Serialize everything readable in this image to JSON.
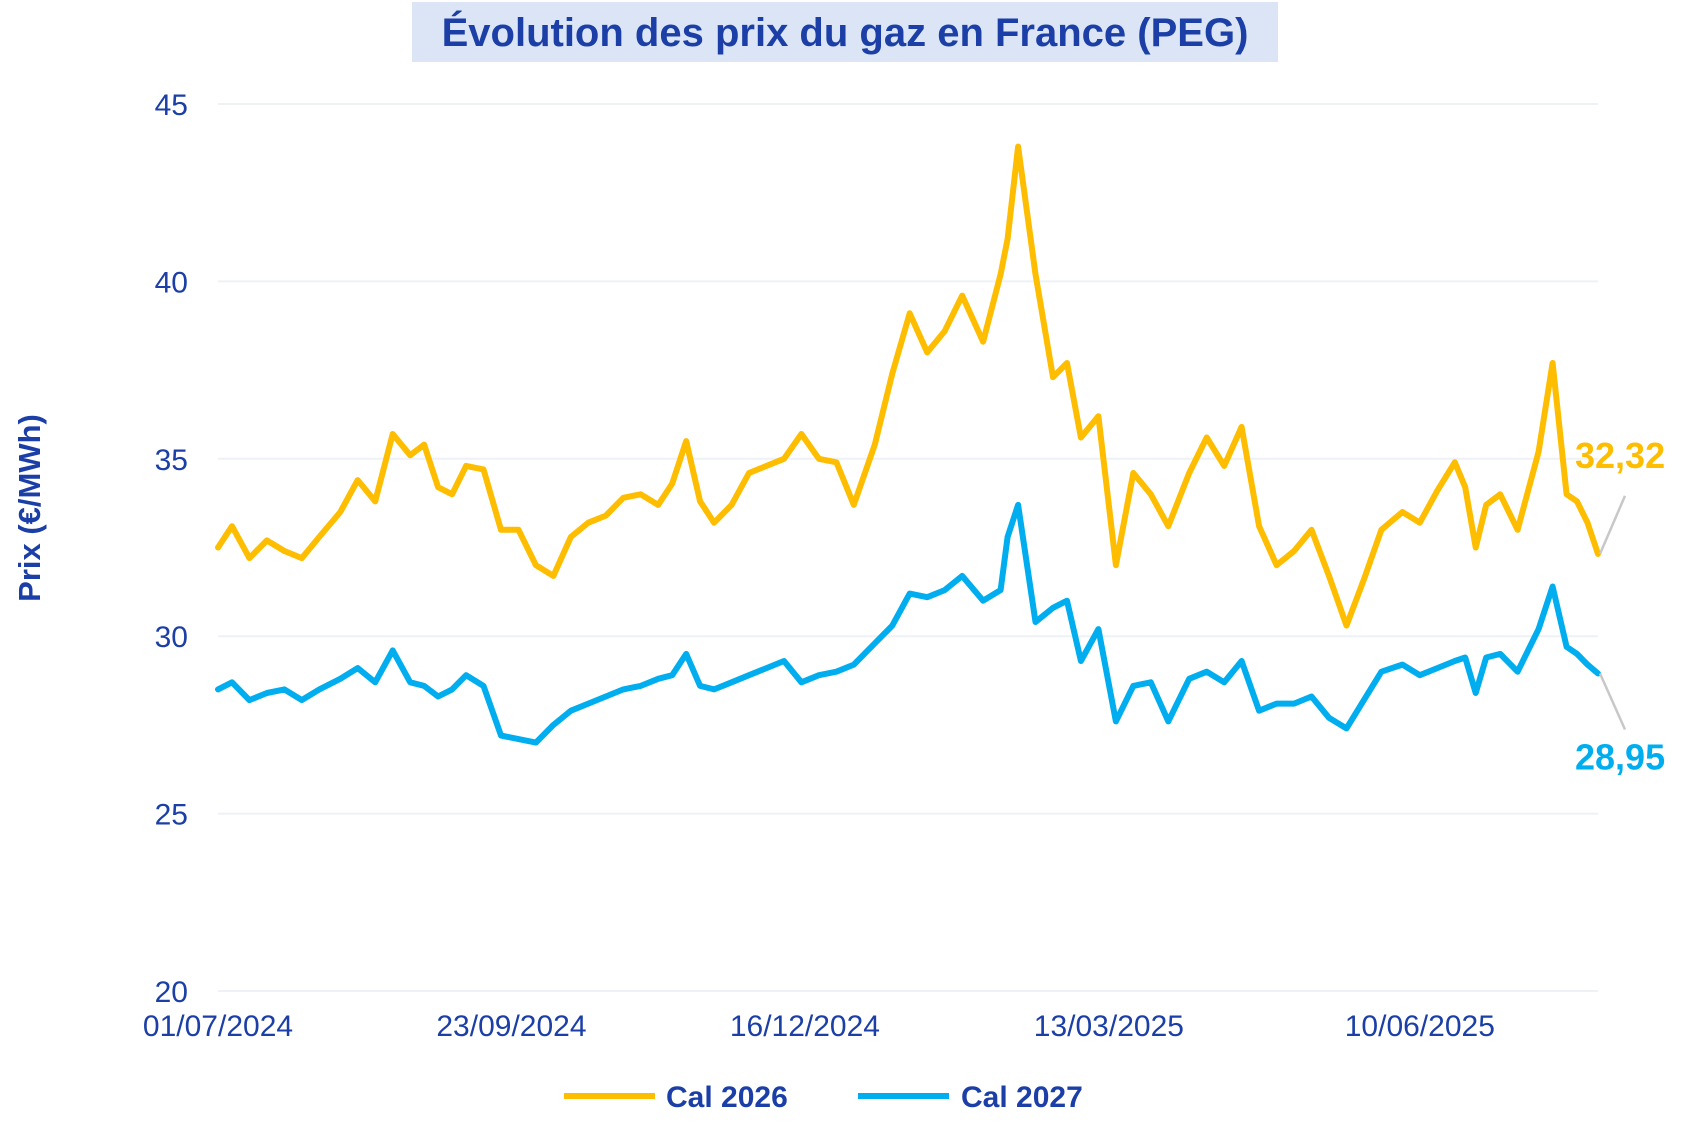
{
  "chart_data": {
    "type": "line",
    "title": "Évolution des prix du gaz en France (PEG)",
    "ylabel": "Prix (€/MWh)",
    "xlabel": "",
    "ylim": [
      20,
      45
    ],
    "yticks": [
      20,
      25,
      30,
      35,
      40,
      45
    ],
    "x_start": "01/07/2024",
    "x_end": "31/07/2025",
    "xtick_labels": [
      "01/07/2024",
      "23/09/2024",
      "16/12/2024",
      "13/03/2025",
      "10/06/2025"
    ],
    "grid": "horizontal",
    "legend_position": "bottom",
    "series": [
      {
        "name": "Cal 2026",
        "color": "#ffbd00",
        "last_label": "32,32",
        "x": [
          "01/07/2024",
          "05/07/2024",
          "10/07/2024",
          "15/07/2024",
          "20/07/2024",
          "25/07/2024",
          "30/07/2024",
          "05/08/2024",
          "10/08/2024",
          "15/08/2024",
          "20/08/2024",
          "25/08/2024",
          "29/08/2024",
          "02/09/2024",
          "06/09/2024",
          "10/09/2024",
          "15/09/2024",
          "20/09/2024",
          "25/09/2024",
          "30/09/2024",
          "05/10/2024",
          "10/10/2024",
          "15/10/2024",
          "20/10/2024",
          "25/10/2024",
          "30/10/2024",
          "04/11/2024",
          "08/11/2024",
          "12/11/2024",
          "16/11/2024",
          "20/11/2024",
          "25/11/2024",
          "30/11/2024",
          "05/12/2024",
          "10/12/2024",
          "15/12/2024",
          "20/12/2024",
          "25/12/2024",
          "30/12/2024",
          "05/01/2025",
          "10/01/2025",
          "15/01/2025",
          "20/01/2025",
          "25/01/2025",
          "30/01/2025",
          "05/02/2025",
          "10/02/2025",
          "12/02/2025",
          "15/02/2025",
          "20/02/2025",
          "25/02/2025",
          "01/03/2025",
          "05/03/2025",
          "10/03/2025",
          "15/03/2025",
          "20/03/2025",
          "25/03/2025",
          "30/03/2025",
          "05/04/2025",
          "10/04/2025",
          "15/04/2025",
          "20/04/2025",
          "25/04/2025",
          "30/04/2025",
          "05/05/2025",
          "10/05/2025",
          "15/05/2025",
          "20/05/2025",
          "25/05/2025",
          "30/05/2025",
          "05/06/2025",
          "10/06/2025",
          "15/06/2025",
          "20/06/2025",
          "23/06/2025",
          "26/06/2025",
          "29/06/2025",
          "03/07/2025",
          "08/07/2025",
          "14/07/2025",
          "18/07/2025",
          "22/07/2025",
          "25/07/2025",
          "28/07/2025",
          "31/07/2025"
        ],
        "values": [
          32.5,
          33.1,
          32.2,
          32.7,
          32.4,
          32.2,
          32.8,
          33.5,
          34.4,
          33.8,
          35.7,
          35.1,
          35.4,
          34.2,
          34.0,
          34.8,
          34.7,
          33.0,
          33.0,
          32.0,
          31.7,
          32.8,
          33.2,
          33.4,
          33.9,
          34.0,
          33.7,
          34.3,
          35.5,
          33.8,
          33.2,
          33.7,
          34.6,
          34.8,
          35.0,
          35.7,
          35.0,
          34.9,
          33.7,
          35.4,
          37.4,
          39.1,
          38.0,
          38.6,
          39.6,
          38.3,
          40.2,
          41.2,
          43.8,
          40.2,
          37.3,
          37.7,
          35.6,
          36.2,
          32.0,
          34.6,
          34.0,
          33.1,
          34.6,
          35.6,
          34.8,
          35.9,
          33.1,
          32.0,
          32.4,
          33.0,
          31.7,
          30.3,
          31.6,
          33.0,
          33.5,
          33.2,
          34.1,
          34.9,
          34.2,
          32.5,
          33.7,
          34.0,
          33.0,
          35.2,
          37.7,
          34.0,
          33.8,
          33.2,
          32.32
        ]
      },
      {
        "name": "Cal 2027",
        "color": "#00aeef",
        "last_label": "28,95",
        "x": [
          "01/07/2024",
          "05/07/2024",
          "10/07/2024",
          "15/07/2024",
          "20/07/2024",
          "25/07/2024",
          "30/07/2024",
          "05/08/2024",
          "10/08/2024",
          "15/08/2024",
          "20/08/2024",
          "25/08/2024",
          "29/08/2024",
          "02/09/2024",
          "06/09/2024",
          "10/09/2024",
          "15/09/2024",
          "20/09/2024",
          "25/09/2024",
          "30/09/2024",
          "05/10/2024",
          "10/10/2024",
          "15/10/2024",
          "20/10/2024",
          "25/10/2024",
          "30/10/2024",
          "04/11/2024",
          "08/11/2024",
          "12/11/2024",
          "16/11/2024",
          "20/11/2024",
          "25/11/2024",
          "30/11/2024",
          "05/12/2024",
          "10/12/2024",
          "15/12/2024",
          "20/12/2024",
          "25/12/2024",
          "30/12/2024",
          "05/01/2025",
          "10/01/2025",
          "15/01/2025",
          "20/01/2025",
          "25/01/2025",
          "30/01/2025",
          "05/02/2025",
          "10/02/2025",
          "12/02/2025",
          "15/02/2025",
          "20/02/2025",
          "25/02/2025",
          "01/03/2025",
          "05/03/2025",
          "10/03/2025",
          "15/03/2025",
          "20/03/2025",
          "25/03/2025",
          "30/03/2025",
          "05/04/2025",
          "10/04/2025",
          "15/04/2025",
          "20/04/2025",
          "25/04/2025",
          "30/04/2025",
          "05/05/2025",
          "10/05/2025",
          "15/05/2025",
          "20/05/2025",
          "25/05/2025",
          "30/05/2025",
          "05/06/2025",
          "10/06/2025",
          "15/06/2025",
          "20/06/2025",
          "23/06/2025",
          "26/06/2025",
          "29/06/2025",
          "03/07/2025",
          "08/07/2025",
          "14/07/2025",
          "18/07/2025",
          "22/07/2025",
          "25/07/2025",
          "28/07/2025",
          "31/07/2025"
        ],
        "values": [
          28.5,
          28.7,
          28.2,
          28.4,
          28.5,
          28.2,
          28.5,
          28.8,
          29.1,
          28.7,
          29.6,
          28.7,
          28.6,
          28.3,
          28.5,
          28.9,
          28.6,
          27.2,
          27.1,
          27.0,
          27.5,
          27.9,
          28.1,
          28.3,
          28.5,
          28.6,
          28.8,
          28.9,
          29.5,
          28.6,
          28.5,
          28.7,
          28.9,
          29.1,
          29.3,
          28.7,
          28.9,
          29.0,
          29.2,
          29.8,
          30.3,
          31.2,
          31.1,
          31.3,
          31.7,
          31.0,
          31.3,
          32.8,
          33.7,
          30.4,
          30.8,
          31.0,
          29.3,
          30.2,
          27.6,
          28.6,
          28.7,
          27.6,
          28.8,
          29.0,
          28.7,
          29.3,
          27.9,
          28.1,
          28.1,
          28.3,
          27.7,
          27.4,
          28.2,
          29.0,
          29.2,
          28.9,
          29.1,
          29.3,
          29.4,
          28.4,
          29.4,
          29.5,
          29.0,
          30.2,
          31.4,
          29.7,
          29.5,
          29.2,
          28.95
        ]
      }
    ]
  }
}
